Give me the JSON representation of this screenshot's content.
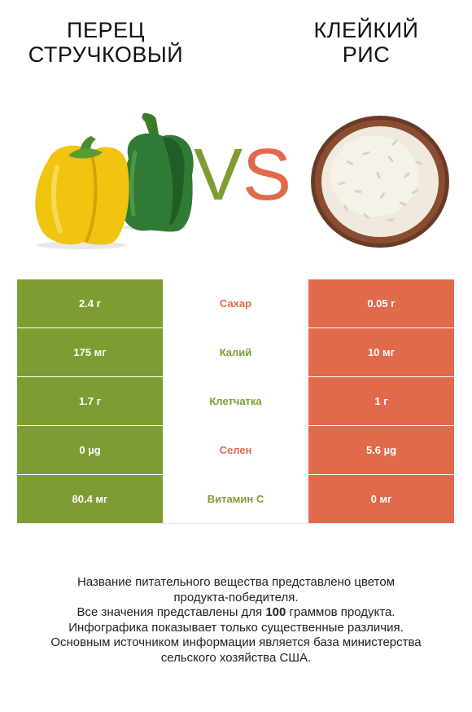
{
  "left": {
    "title_line1": "ПЕРЕЦ",
    "title_line2": "СТРУЧКОВЫЙ",
    "color": "#7d9d33",
    "image": "bell-peppers-icon"
  },
  "right": {
    "title_line1": "КЛЕЙКИЙ",
    "title_line2": "РИС",
    "color": "#e06a4b",
    "image": "rice-bowl-icon"
  },
  "vs": {
    "v": "V",
    "s": "S"
  },
  "rows": [
    {
      "left": "2.4 г",
      "nutrient": "Сахар",
      "right": "0.05 г",
      "winner": "right"
    },
    {
      "left": "175 мг",
      "nutrient": "Калий",
      "right": "10 мг",
      "winner": "left"
    },
    {
      "left": "1.7 г",
      "nutrient": "Клетчатка",
      "right": "1 г",
      "winner": "left"
    },
    {
      "left": "0 µg",
      "nutrient": "Селен",
      "right": "5.6 µg",
      "winner": "right"
    },
    {
      "left": "80.4 мг",
      "nutrient": "Витамин C",
      "right": "0 мг",
      "winner": "left"
    }
  ],
  "footnote": {
    "line1": "Название питательного вещества представлено цветом",
    "line2": "продукта-победителя.",
    "line3_before": "Все значения представлены для ",
    "line3_bold": "100",
    "line3_after": " граммов продукта.",
    "line4": "Инфографика показывает только существенные различия.",
    "line5": "Основным источником информации является база министерства",
    "line6": "сельского хозяйства США."
  }
}
